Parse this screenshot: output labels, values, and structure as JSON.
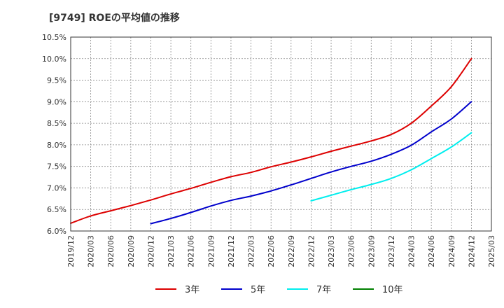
{
  "chart_data": {
    "type": "line",
    "title": "[9749]  ROEの平均値の推移",
    "xlabel": "",
    "ylabel": "",
    "ylim": [
      6.0,
      10.5
    ],
    "y_ticks": [
      "6.0%",
      "6.5%",
      "7.0%",
      "7.5%",
      "8.0%",
      "8.5%",
      "9.0%",
      "9.5%",
      "10.0%",
      "10.5%"
    ],
    "x_ticks": [
      "2019/12",
      "2020/03",
      "2020/06",
      "2020/09",
      "2020/12",
      "2021/03",
      "2021/06",
      "2021/09",
      "2021/12",
      "2022/03",
      "2022/06",
      "2022/09",
      "2022/12",
      "2023/03",
      "2023/06",
      "2023/09",
      "2023/12",
      "2024/03",
      "2024/06",
      "2024/09",
      "2024/12",
      "2025/03"
    ],
    "grid": true,
    "legend_position": "bottom",
    "series": [
      {
        "name": "3年",
        "color": "#dd0000",
        "start_index": 0,
        "values": [
          6.18,
          6.35,
          6.47,
          6.59,
          6.72,
          6.86,
          6.99,
          7.13,
          7.26,
          7.36,
          7.49,
          7.6,
          7.72,
          7.85,
          7.97,
          8.09,
          8.24,
          8.5,
          8.9,
          9.35,
          10.0
        ]
      },
      {
        "name": "5年",
        "color": "#0000cc",
        "start_index": 4,
        "values": [
          6.17,
          6.29,
          6.43,
          6.58,
          6.71,
          6.81,
          6.93,
          7.07,
          7.22,
          7.37,
          7.5,
          7.62,
          7.78,
          7.99,
          8.3,
          8.6,
          9.0
        ]
      },
      {
        "name": "7年",
        "color": "#00eeee",
        "start_index": 12,
        "values": [
          6.7,
          6.83,
          6.96,
          7.08,
          7.22,
          7.42,
          7.68,
          7.95,
          8.28
        ]
      },
      {
        "name": "10年",
        "color": "#008000",
        "start_index": 0,
        "values": []
      }
    ]
  }
}
